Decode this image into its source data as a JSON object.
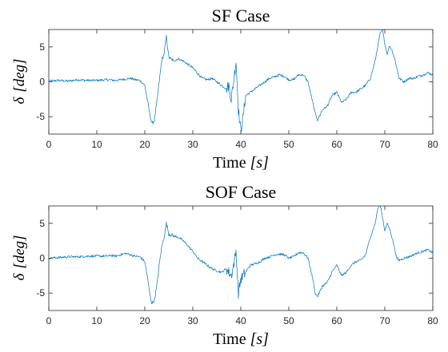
{
  "chart_data": [
    {
      "type": "line",
      "title": "SF Case",
      "xlabel_main": "Time ",
      "xlabel_unit": "[s]",
      "ylabel_symbol": "δ",
      "ylabel_unit": "[deg]",
      "xlim": [
        0,
        80
      ],
      "ylim": [
        -7.5,
        7.5
      ],
      "xticks": [
        0,
        10,
        20,
        30,
        40,
        50,
        60,
        70,
        80
      ],
      "xtick_labels": [
        "0",
        "10",
        "20",
        "30",
        "40",
        "50",
        "60",
        "70",
        "80"
      ],
      "yticks": [
        -5,
        0,
        5
      ],
      "ytick_labels": [
        "-5",
        "0",
        "5"
      ],
      "grid": false,
      "series": [
        {
          "color": "#0072bd",
          "x": [
            0,
            2,
            4,
            6,
            8,
            10,
            12,
            14,
            15,
            16,
            17,
            18,
            19,
            20,
            20.5,
            21,
            21.5,
            22,
            22.5,
            23,
            23.5,
            24,
            24.5,
            25,
            26,
            27,
            28,
            29,
            30,
            31,
            32,
            33,
            34,
            35,
            36,
            37,
            37.5,
            38,
            38.5,
            39,
            39.5,
            40,
            40.5,
            41,
            42,
            43,
            44,
            45,
            46,
            47,
            48,
            49,
            50,
            51,
            52,
            53,
            54,
            55,
            55.5,
            56,
            57,
            58,
            59,
            60,
            61,
            62,
            63,
            64,
            65,
            66,
            67,
            68,
            68.5,
            69,
            69.5,
            70,
            70.5,
            71,
            71.5,
            72,
            72.5,
            73,
            74,
            75,
            76,
            77,
            78,
            79,
            80
          ],
          "y": [
            0.1,
            0.2,
            0.1,
            0.3,
            0.2,
            0.2,
            0.3,
            0.2,
            0.3,
            0.4,
            0.5,
            0.3,
            0.2,
            -0.5,
            -2.5,
            -4.5,
            -6,
            -5.5,
            -3,
            0,
            3,
            4,
            6.5,
            3.5,
            3,
            3.3,
            3,
            2.5,
            2,
            1.2,
            0.5,
            0.3,
            0.5,
            0,
            -0.5,
            -1,
            -0.5,
            -2.5,
            0,
            3,
            -4,
            -7,
            -5,
            -2,
            -1.5,
            -1,
            -0.5,
            0,
            0.5,
            0.7,
            1,
            0.8,
            0.3,
            0.3,
            1,
            1,
            0,
            -3,
            -4.5,
            -5.5,
            -4,
            -3.5,
            -2,
            -1.5,
            -3,
            -2.5,
            -1.5,
            -1.5,
            -1,
            -0.5,
            0.5,
            3,
            5,
            6.8,
            7.5,
            5.5,
            4,
            5.2,
            4.5,
            3.5,
            2,
            0.5,
            0,
            0.5,
            0.5,
            0.8,
            1,
            1.3,
            1
          ]
        }
      ]
    },
    {
      "type": "line",
      "title": "SOF Case",
      "xlabel_main": "Time ",
      "xlabel_unit": "[s]",
      "ylabel_symbol": "δ",
      "ylabel_unit": "[deg]",
      "xlim": [
        0,
        80
      ],
      "ylim": [
        -7.5,
        7.5
      ],
      "xticks": [
        0,
        10,
        20,
        30,
        40,
        50,
        60,
        70,
        80
      ],
      "xtick_labels": [
        "0",
        "10",
        "20",
        "30",
        "40",
        "50",
        "60",
        "70",
        "80"
      ],
      "yticks": [
        -5,
        0,
        5
      ],
      "ytick_labels": [
        "-5",
        "0",
        "5"
      ],
      "grid": false,
      "series": [
        {
          "color": "#0072bd",
          "x": [
            0,
            2,
            4,
            6,
            8,
            10,
            12,
            13,
            14,
            15,
            16,
            17,
            18,
            19,
            20,
            20.5,
            21,
            21.5,
            22,
            22.5,
            23,
            23.5,
            24,
            24.5,
            25,
            26,
            27,
            28,
            29,
            30,
            31,
            32,
            33,
            34,
            35,
            36,
            37,
            38,
            38.5,
            39,
            39.5,
            40,
            41,
            42,
            43,
            44,
            45,
            46,
            47,
            48,
            49,
            50,
            51,
            52,
            53,
            54,
            55,
            55.5,
            56,
            57,
            58,
            59,
            60,
            61,
            62,
            63,
            64,
            65,
            66,
            67,
            68,
            68.5,
            69,
            69.5,
            70,
            70.5,
            71,
            71.5,
            72,
            72.5,
            73,
            74,
            75,
            76,
            77,
            78,
            79,
            80
          ],
          "y": [
            0,
            0.1,
            0.2,
            0.2,
            0.3,
            0.3,
            0.3,
            0.4,
            0.3,
            0.5,
            0.7,
            0.5,
            0.3,
            0.2,
            -0.5,
            -2.5,
            -5,
            -6.5,
            -6,
            -4,
            -1,
            1.5,
            3,
            5,
            3.5,
            3.2,
            3,
            2.5,
            1.8,
            1,
            0,
            -0.5,
            -1,
            -1.5,
            -1.8,
            -2,
            -1.5,
            -2.5,
            -1,
            1,
            -5,
            -3,
            -2,
            -1,
            -0.8,
            -0.5,
            0,
            0.2,
            0.5,
            0.6,
            0.5,
            0,
            0.2,
            0.8,
            0.8,
            0,
            -3,
            -5,
            -5.5,
            -4,
            -3.5,
            -2,
            -1,
            -2.5,
            -2,
            -1,
            -0.5,
            -0.3,
            0.5,
            3,
            5,
            7,
            7.8,
            6,
            4,
            5,
            4.2,
            3,
            1.5,
            0,
            -0.3,
            0,
            0.2,
            0.5,
            0.8,
            1,
            1.2,
            0.8
          ]
        }
      ]
    }
  ]
}
